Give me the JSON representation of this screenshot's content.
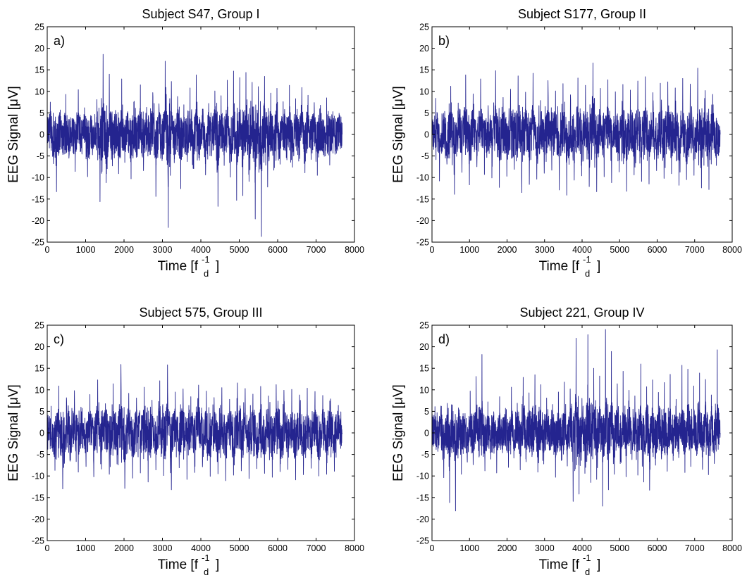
{
  "chart_data": [
    {
      "type": "line",
      "panel_label": "a)",
      "title": "Subject S47, Group I",
      "xlabel": "Time [f",
      "xlabel_sup": "-1",
      "xlabel_sub": "d",
      "xlabel_end": "]",
      "ylabel": "EEG Signal [μV]",
      "xlim": [
        0,
        8000
      ],
      "ylim": [
        -25,
        25
      ],
      "xticks": [
        0,
        1000,
        2000,
        3000,
        4000,
        5000,
        6000,
        7000,
        8000
      ],
      "yticks": [
        25,
        20,
        15,
        10,
        5,
        0,
        -5,
        -10,
        -15,
        -20,
        -25
      ],
      "x_end": 7680,
      "color": "#24248f",
      "series": [
        {
          "values": [
            0,
            7.5,
            -6.8,
            -13.3,
            5.1,
            -4.2,
            9.3,
            -5.5,
            3.7,
            -8.6,
            10.4,
            -3.1,
            6.2,
            -9.8,
            4.4,
            -2.9,
            8.1,
            -15.6,
            18.6,
            -11.2,
            14,
            -7.3,
            5.6,
            -9.1,
            12.9,
            -6.5,
            4.8,
            -10.3,
            7.7,
            -5.2,
            11.5,
            -8.4,
            6.3,
            -3.9,
            9.7,
            -14.4,
            7.1,
            -6.1,
            17,
            -21.6,
            12.3,
            -5.7,
            8.8,
            -12.6,
            6.9,
            -4.3,
            10.8,
            -7.9,
            13.8,
            -6,
            5.9,
            -9.4,
            7.2,
            -5,
            10.1,
            -16.7,
            9,
            -7.2,
            12.6,
            -9.9,
            14.7,
            -15.3,
            13.2,
            -14.2,
            14.4,
            -10.9,
            12.1,
            -19.6,
            11.1,
            -23.7,
            13.5,
            -12.2,
            9.6,
            -8.3,
            10.7,
            -6.9,
            7.6,
            -5.4,
            11.4,
            -7.6,
            8.3,
            -6.2,
            10.9,
            -8.9,
            9.1,
            -5.8,
            7.4,
            -9.5,
            6.8,
            -4.7,
            8.5,
            -7.1,
            5.3,
            -3.8,
            4.9,
            0
          ]
        }
      ]
    },
    {
      "type": "line",
      "panel_label": "b)",
      "title": "Subject S177, Group II",
      "xlabel": "Time [f",
      "xlabel_sup": "-1",
      "xlabel_sub": "d",
      "xlabel_end": "]",
      "ylabel": "EEG Signal [μV]",
      "xlim": [
        0,
        8000
      ],
      "ylim": [
        -25,
        25
      ],
      "xticks": [
        0,
        1000,
        2000,
        3000,
        4000,
        5000,
        6000,
        7000,
        8000
      ],
      "yticks": [
        25,
        20,
        15,
        10,
        5,
        0,
        -5,
        -10,
        -15,
        -20,
        -25
      ],
      "x_end": 7680,
      "color": "#24248f",
      "series": [
        {
          "values": [
            0,
            8.4,
            -10.8,
            4.6,
            -6.9,
            11.2,
            -13.9,
            7.3,
            -8.8,
            13.8,
            -11.7,
            9.4,
            -7.5,
            12.9,
            -9.3,
            6.7,
            -10.1,
            14.8,
            -12.3,
            8.6,
            -9.7,
            10.5,
            -8.1,
            13.6,
            -13.5,
            9.8,
            -11.6,
            14.2,
            -10.4,
            7.9,
            -9,
            12.5,
            -8.3,
            10.1,
            -12.9,
            11.8,
            -14.1,
            9.2,
            -10.6,
            13.1,
            -9.6,
            11.4,
            -12.1,
            16.6,
            -13.3,
            10.7,
            -9.8,
            12.7,
            -11.2,
            9.9,
            -8.7,
            11.6,
            -13.2,
            10.3,
            -9.4,
            12.4,
            -10.9,
            13.4,
            -11.5,
            9.7,
            -8.4,
            11.9,
            -10.2,
            12.2,
            -9.1,
            10.8,
            -11.8,
            13,
            -10.5,
            11.7,
            -9.5,
            15.4,
            -12.4,
            10.2,
            -12.8,
            9.3,
            -7.2,
            0
          ]
        }
      ]
    },
    {
      "type": "line",
      "panel_label": "c)",
      "title": "Subject 575, Group III",
      "xlabel": "Time [f",
      "xlabel_sup": "-1",
      "xlabel_sub": "d",
      "xlabel_end": "]",
      "ylabel": "EEG Signal [μV]",
      "xlim": [
        0,
        8000
      ],
      "ylim": [
        -25,
        25
      ],
      "xticks": [
        0,
        1000,
        2000,
        3000,
        4000,
        5000,
        6000,
        7000,
        8000
      ],
      "yticks": [
        25,
        20,
        15,
        10,
        5,
        0,
        -5,
        -10,
        -15,
        -20,
        -25
      ],
      "x_end": 7680,
      "color": "#24248f",
      "series": [
        {
          "values": [
            0,
            6.2,
            -8.7,
            10.9,
            -13,
            7.5,
            -6.3,
            9.8,
            -9.1,
            5.7,
            -7.8,
            8.9,
            -10.2,
            12.3,
            -8.4,
            6.8,
            -9.6,
            11.4,
            -7.2,
            15.9,
            -12.9,
            9.2,
            -10.5,
            8.1,
            -9.3,
            10.6,
            -11.4,
            7.6,
            -8.6,
            12.1,
            -9.9,
            15.8,
            -13.2,
            9.5,
            -8.1,
            10.2,
            -10.8,
            8.4,
            -9.2,
            11.1,
            -7.9,
            9.7,
            -10.1,
            8.2,
            -9.5,
            10.5,
            -11.1,
            7.8,
            -9.8,
            11.6,
            -8.8,
            10.3,
            -10.6,
            9,
            -8.3,
            10.8,
            -9.4,
            8.6,
            -10.3,
            11.2,
            -9,
            9.9,
            -8.5,
            10.1,
            -10.9,
            8.8,
            -9.7,
            10.4,
            -8.2,
            9.6,
            -10,
            8.7,
            -9.6,
            7.9,
            -8.9,
            6.4,
            0
          ]
        }
      ]
    },
    {
      "type": "line",
      "panel_label": "d)",
      "title": "Subject 221, Group IV",
      "xlabel": "Time [f",
      "xlabel_sup": "-1",
      "xlabel_sub": "d",
      "xlabel_end": "]",
      "ylabel": "EEG Signal [μV]",
      "xlim": [
        0,
        8000
      ],
      "ylim": [
        -25,
        25
      ],
      "xticks": [
        0,
        1000,
        2000,
        3000,
        4000,
        5000,
        6000,
        7000,
        8000
      ],
      "yticks": [
        25,
        20,
        15,
        10,
        5,
        0,
        -5,
        -10,
        -15,
        -20,
        -25
      ],
      "x_end": 7680,
      "color": "#24248f",
      "series": [
        {
          "values": [
            0,
            6.1,
            -4.3,
            5.2,
            -10.4,
            4.1,
            -16.2,
            6.5,
            -18.1,
            5.8,
            -9.6,
            3.2,
            -6.8,
            9.7,
            -7.4,
            13.1,
            -5.6,
            18.2,
            -8.8,
            7.2,
            -6.1,
            4.9,
            -9.3,
            8.4,
            -4.6,
            5.7,
            -8,
            10.6,
            -3.4,
            6.9,
            -8.6,
            12.9,
            -6.7,
            9.3,
            -5.5,
            13.5,
            -9.1,
            11.2,
            -7.2,
            8.1,
            -3.9,
            6.6,
            -10.3,
            9.5,
            -6.4,
            11.8,
            -7.7,
            10.2,
            -15.9,
            22,
            -14.2,
            8,
            -9.4,
            22.8,
            -11.5,
            15,
            -10.8,
            13.2,
            -17,
            24,
            -13.2,
            18.9,
            -9.6,
            11.4,
            -7.1,
            14.3,
            -10.2,
            9.9,
            -6.2,
            8.6,
            -9.8,
            16,
            -11.4,
            10.7,
            -13.3,
            12.3,
            -7.5,
            9.4,
            -5.8,
            11.7,
            -8.9,
            13.6,
            -6.4,
            7.8,
            -4.9,
            15.7,
            -9.2,
            14.8,
            -7.8,
            10.9,
            -5.3,
            13.9,
            -8.5,
            12.4,
            -9.7,
            8.8,
            -7.1,
            19.3,
            0
          ]
        }
      ]
    }
  ]
}
